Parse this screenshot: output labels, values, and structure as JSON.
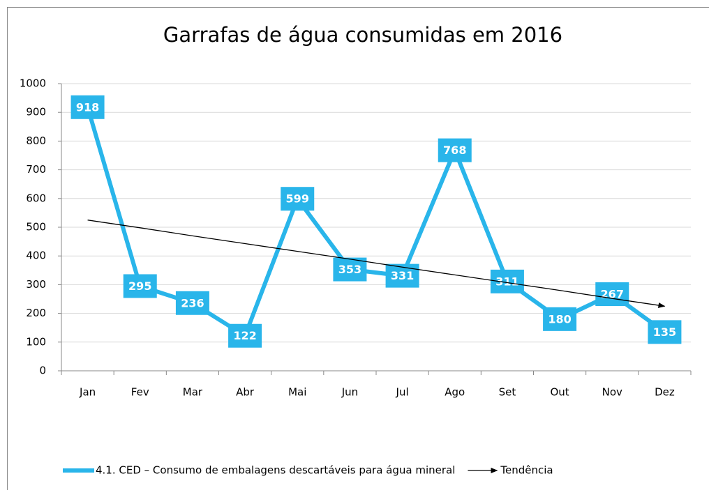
{
  "chart_data": {
    "type": "line",
    "title": "Garrafas de água consumidas em 2016",
    "categories": [
      "Jan",
      "Fev",
      "Mar",
      "Abr",
      "Mai",
      "Jun",
      "Jul",
      "Ago",
      "Set",
      "Out",
      "Nov",
      "Dez"
    ],
    "series": [
      {
        "name": "4.1. CED – Consumo de embalagens descartáveis para água mineral",
        "color": "#29b5ea",
        "values": [
          918,
          295,
          236,
          122,
          599,
          353,
          331,
          768,
          311,
          180,
          267,
          135
        ]
      },
      {
        "name": "Tendência",
        "color": "#000000",
        "trend": true,
        "values": [
          525,
          498,
          470,
          443,
          416,
          389,
          361,
          334,
          307,
          280,
          252,
          225
        ]
      }
    ],
    "ylim": [
      0,
      1000
    ],
    "yticks": [
      0,
      100,
      200,
      300,
      400,
      500,
      600,
      700,
      800,
      900,
      1000
    ],
    "grid": true,
    "legend": "bottom",
    "data_labels": true
  }
}
